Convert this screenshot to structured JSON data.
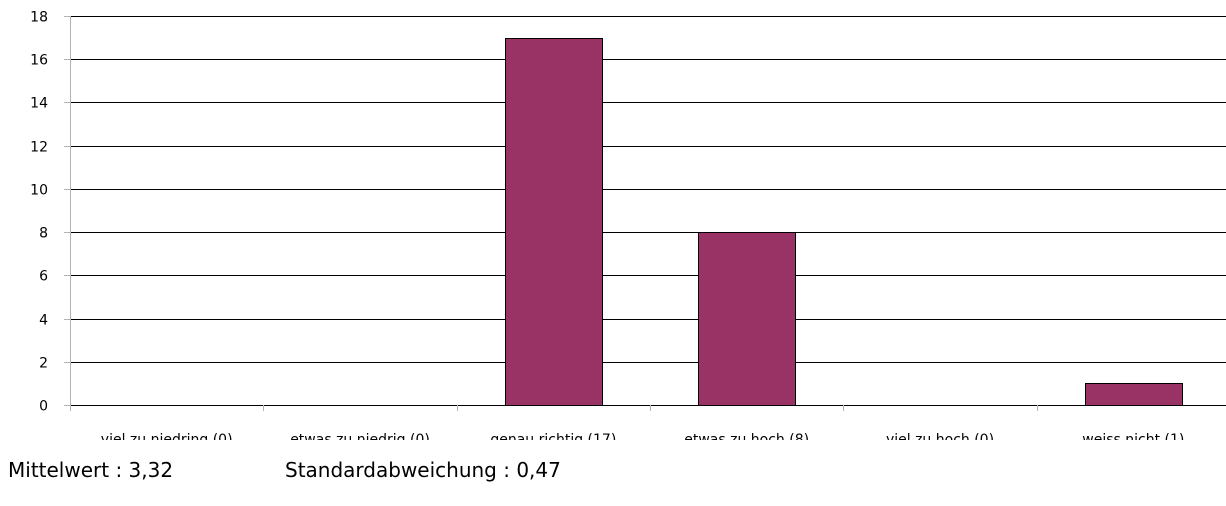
{
  "chart_data": {
    "type": "bar",
    "categories": [
      "viel zu niedring (0)",
      "etwas zu niedrig (0)",
      "genau richtig (17)",
      "etwas zu hoch (8)",
      "viel zu hoch (0)",
      "weiss nicht (1)"
    ],
    "values": [
      0,
      0,
      17,
      8,
      0,
      1
    ],
    "title": "",
    "xlabel": "",
    "ylabel": "",
    "ylim": [
      0,
      18
    ],
    "yticks": [
      0,
      2,
      4,
      6,
      8,
      10,
      12,
      14,
      16,
      18
    ],
    "grid": true,
    "bar_color": "#993366"
  },
  "stats": {
    "mean_text": "Mittelwert : 3,32",
    "std_text": "Standardabweichung : 0,47"
  }
}
